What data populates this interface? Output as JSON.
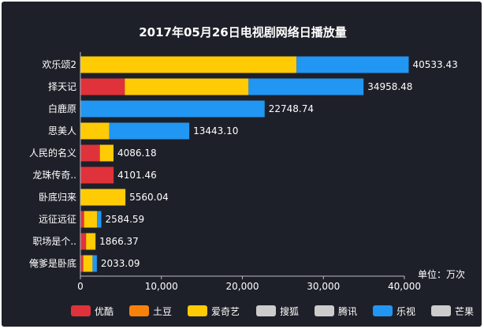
{
  "chart_data": {
    "type": "bar",
    "orientation": "horizontal",
    "stacked": true,
    "title": "2017年05月26日电视剧网络日播放量",
    "unit_label": "单位：万次",
    "xlim": [
      0,
      40000
    ],
    "x_ticks": [
      "0",
      "10,000",
      "20,000",
      "30,000",
      "40,000"
    ],
    "x_tick_values": [
      0,
      10000,
      20000,
      30000,
      40000
    ],
    "grid": false,
    "legend_position": "bottom",
    "categories": [
      "欢乐颂2",
      "择天记",
      "白鹿原",
      "思美人",
      "人民的名义",
      "龙珠传奇..",
      "卧底归来",
      "远征远征",
      "职场是个..",
      "俺爹是卧底"
    ],
    "totals": [
      "40533.43",
      "34958.48",
      "22748.74",
      "13443.10",
      "4086.18",
      "4101.46",
      "5560.04",
      "2584.59",
      "1866.37",
      "2033.09"
    ],
    "series": [
      {
        "name": "优酷",
        "color": "#e0323a",
        "values": [
          0,
          5480,
          0,
          0,
          2400,
          4101.46,
          0,
          450,
          700,
          350
        ]
      },
      {
        "name": "土豆",
        "color": "#f7820b",
        "values": [
          0,
          0,
          0,
          0,
          0,
          0,
          0,
          0,
          0,
          0
        ]
      },
      {
        "name": "爱奇艺",
        "color": "#ffcb05",
        "values": [
          26680,
          15280,
          0,
          3550,
          1686.18,
          0,
          5560.04,
          1600,
          1166.37,
          1150
        ]
      },
      {
        "name": "搜狐",
        "color": "#cccccc",
        "values": [
          0,
          0,
          0,
          0,
          0,
          0,
          0,
          0,
          0,
          0
        ]
      },
      {
        "name": "腾讯",
        "color": "#cccccc",
        "values": [
          0,
          0,
          0,
          0,
          0,
          0,
          0,
          0,
          0,
          0
        ]
      },
      {
        "name": "乐视",
        "color": "#2196f3",
        "values": [
          13853.43,
          14198.48,
          22748.74,
          9893.1,
          0,
          0,
          0,
          534.59,
          0,
          533.09
        ]
      },
      {
        "name": "芒果",
        "color": "#cccccc",
        "values": [
          0,
          0,
          0,
          0,
          0,
          0,
          0,
          0,
          0,
          0
        ]
      }
    ]
  }
}
